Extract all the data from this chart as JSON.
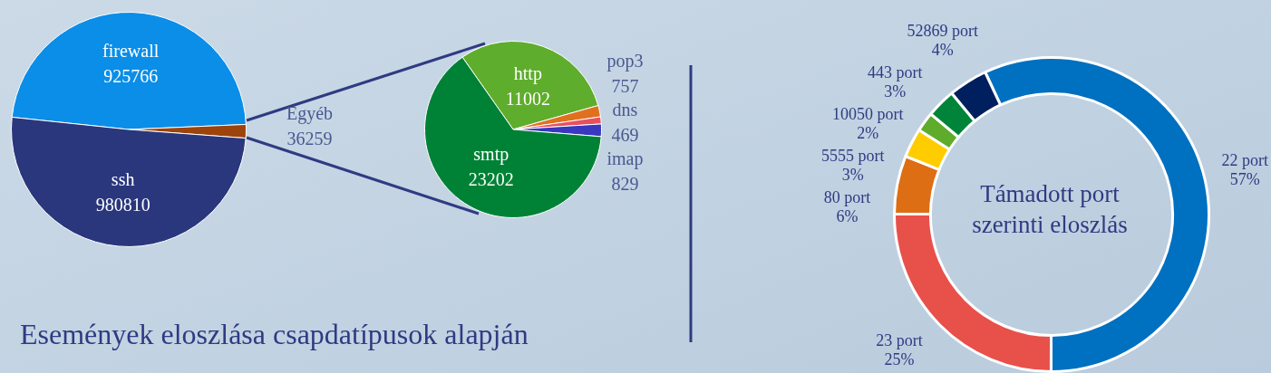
{
  "chart_data": [
    {
      "type": "pie",
      "title": "Események eloszlása csapdatípusok alapján",
      "categories": [
        "firewall",
        "Egyéb",
        "ssh"
      ],
      "values": [
        925766,
        36259,
        980810
      ],
      "colors": [
        "#0a8ee8",
        "#9c440c",
        "#2a377d"
      ],
      "data_labels": true,
      "legend": false
    },
    {
      "type": "pie",
      "categories": [
        "http",
        "pop3",
        "dns",
        "imap",
        "smtp"
      ],
      "values": [
        11002,
        757,
        469,
        829,
        23202
      ],
      "colors": [
        "#5fad2c",
        "#e07020",
        "#e85060",
        "#3838c0",
        "#008236"
      ],
      "data_labels": true,
      "legend": false
    },
    {
      "type": "donut",
      "title": "Támadott port szerinti eloszlás",
      "categories": [
        "22 port",
        "23 port",
        "80 port",
        "5555 port",
        "10050 port",
        "443 port",
        "52869 port"
      ],
      "values": [
        57,
        25,
        6,
        3,
        2,
        3,
        4
      ],
      "value_labels": [
        "57%",
        "25%",
        "6%",
        "3%",
        "2%",
        "3%",
        "4%"
      ],
      "colors": [
        "#0070c0",
        "#e8504a",
        "#dd6e14",
        "#ffcc00",
        "#5fab2c",
        "#00843a",
        "#001f5f"
      ],
      "legend": false
    }
  ]
}
